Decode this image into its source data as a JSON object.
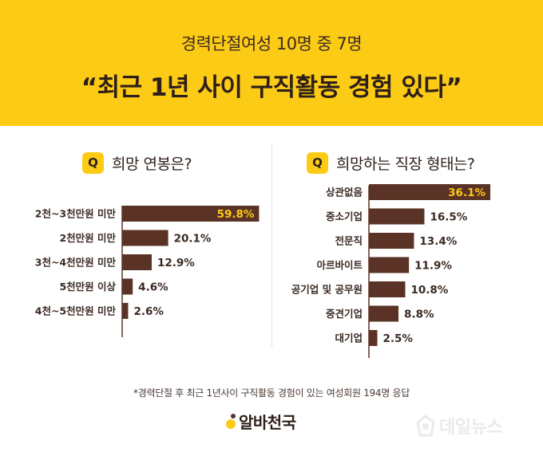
{
  "header": {
    "subtitle": "경력단절여성 10명 중 7명",
    "title": "“최근 1년 사이 구직활동 경험 있다”"
  },
  "colors": {
    "header_bg": "#fccb16",
    "bar": "#5a3326",
    "highlight_text": "#fccb16",
    "text": "#3a2a22"
  },
  "questions": {
    "left": {
      "badge": "Q",
      "text": "희망 연봉은?"
    },
    "right": {
      "badge": "Q",
      "text": "희망하는 직장 형태는?"
    }
  },
  "chart_data": [
    {
      "type": "bar",
      "orientation": "horizontal",
      "title": "희망 연봉은?",
      "categories": [
        "2천~3천만원 미만",
        "2천만원 미만",
        "3천~4천만원 미만",
        "5천만원 이상",
        "4천~5천만원 미만"
      ],
      "values": [
        59.8,
        20.1,
        12.9,
        4.6,
        2.6
      ],
      "labels": [
        "59.8%",
        "20.1%",
        "12.9%",
        "4.6%",
        "2.6%"
      ],
      "unit": "%",
      "xlim": [
        0,
        60
      ],
      "highlight_index": 0
    },
    {
      "type": "bar",
      "orientation": "horizontal",
      "title": "희망하는 직장 형태는?",
      "categories": [
        "상관없음",
        "중소기업",
        "전문직",
        "아르바이트",
        "공기업 및 공무원",
        "중견기업",
        "대기업"
      ],
      "values": [
        36.1,
        16.5,
        13.4,
        11.9,
        10.8,
        8.8,
        2.5
      ],
      "labels": [
        "36.1%",
        "16.5%",
        "13.4%",
        "11.9%",
        "10.8%",
        "8.8%",
        "2.5%"
      ],
      "unit": "%",
      "xlim": [
        0,
        36.1
      ],
      "highlight_index": 0
    }
  ],
  "footnote": "*경력단절 후 최근 1년사이 구직활동 경험이 있는 여성회원 194명 응답",
  "logo": {
    "text": "알바천국"
  },
  "watermark": {
    "text": "데일뉴스"
  }
}
